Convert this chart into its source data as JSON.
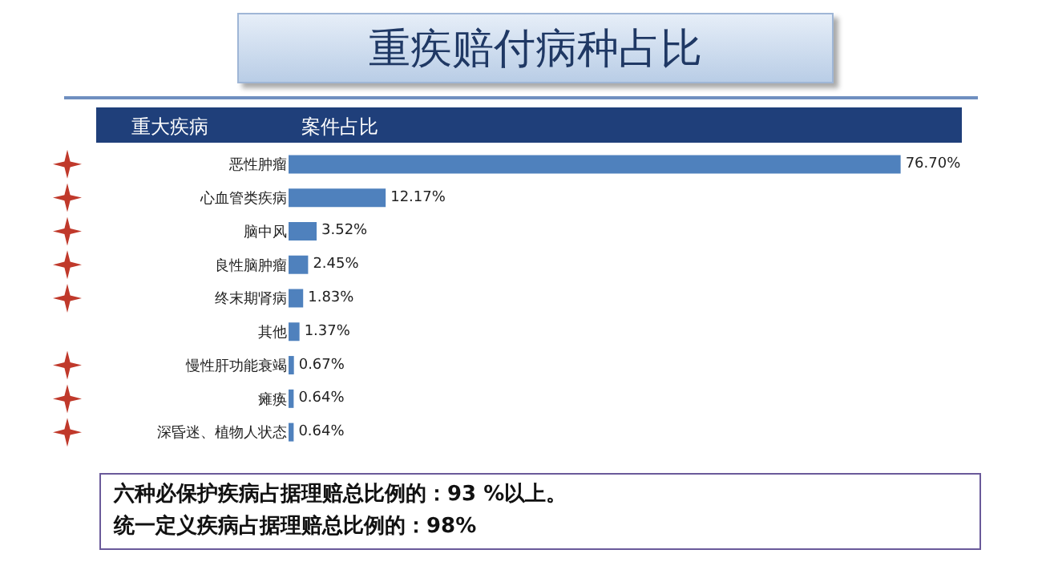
{
  "chart_data": {
    "type": "bar",
    "orientation": "horizontal",
    "title": "重疾赔付病种占比",
    "ylabel": "重大疾病",
    "xlabel": "案件占比",
    "categories": [
      "恶性肿瘤",
      "心血管类疾病",
      "脑中风",
      "良性脑肿瘤",
      "终末期肾病",
      "其他",
      "慢性肝功能衰竭",
      "瘫痪",
      "深昏迷、植物人状态"
    ],
    "values": [
      76.7,
      12.17,
      3.52,
      2.45,
      1.83,
      1.37,
      0.67,
      0.64,
      0.64
    ],
    "value_labels": [
      "76.70%",
      "12.17%",
      "3.52%",
      "2.45%",
      "1.83%",
      "1.37%",
      "0.67%",
      "0.64%",
      "0.64%"
    ],
    "color": "#4f81bd",
    "annotations": [
      "六种必保护疾病占据理赔总比例的：93 %以上。",
      "统一定义疾病占据理赔总比例的：98%"
    ]
  }
}
